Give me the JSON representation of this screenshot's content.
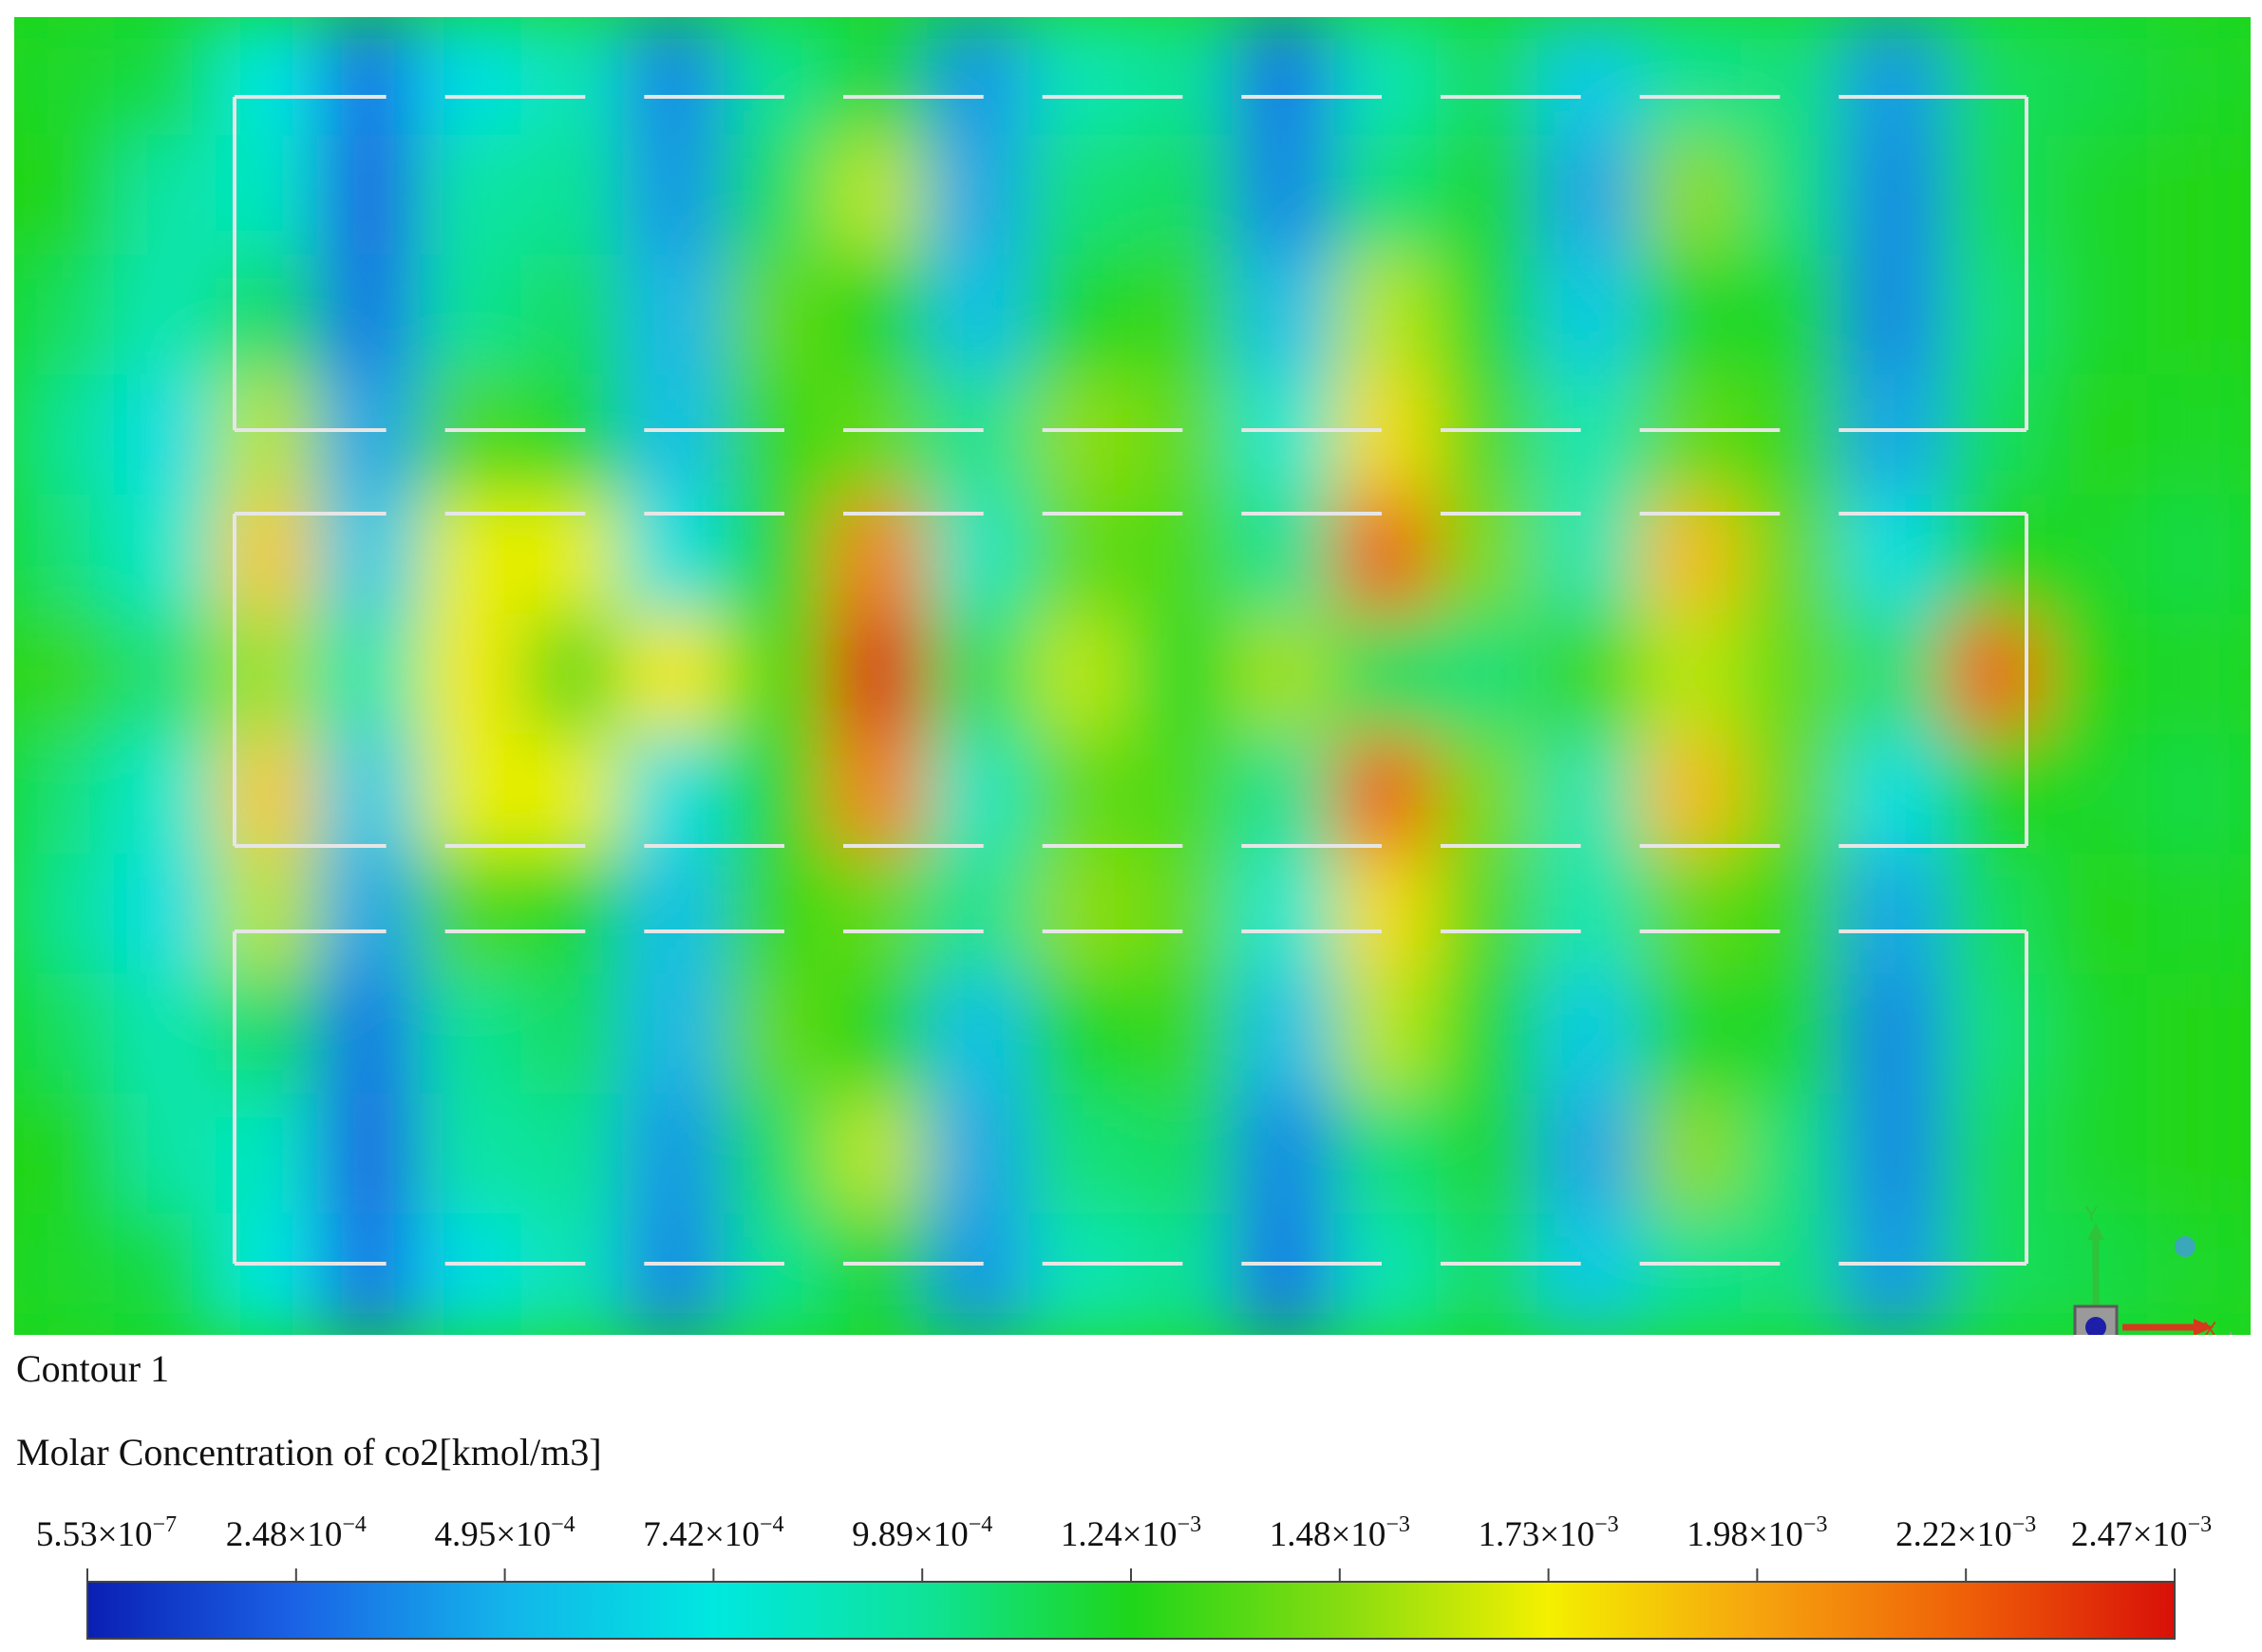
{
  "caption": {
    "contour_title": "Contour 1",
    "variable_label": "Molar Concentration of co2[kmol/m3]"
  },
  "axis_triad": {
    "y_label": "Y",
    "x_label": "X"
  },
  "colors": {
    "colormap": [
      "#0a1fb4",
      "#1a63e6",
      "#13b4ea",
      "#00e8e0",
      "#0ee39a",
      "#1ed61a",
      "#86dc10",
      "#f4f000",
      "#f6a40e",
      "#ef5f08",
      "#d81008"
    ],
    "frame_line": "#e6e6e6"
  },
  "chart_data": {
    "type": "heatmap",
    "title": "Contour 1",
    "variable": "Molar Concentration of co2[kmol/m3]",
    "colorbar": {
      "min": 5.53e-07,
      "max": 0.00247,
      "ticks": [
        5.53e-07,
        0.000248,
        0.000495,
        0.000742,
        0.000989,
        0.00124,
        0.00148,
        0.00173,
        0.00198,
        0.00222,
        0.00247
      ],
      "tick_labels": [
        {
          "mantissa": "5.53",
          "exponent": "−7"
        },
        {
          "mantissa": "2.48",
          "exponent": "−4"
        },
        {
          "mantissa": "4.95",
          "exponent": "−4"
        },
        {
          "mantissa": "7.42",
          "exponent": "−4"
        },
        {
          "mantissa": "9.89",
          "exponent": "−4"
        },
        {
          "mantissa": "1.24",
          "exponent": "−3"
        },
        {
          "mantissa": "1.48",
          "exponent": "−3"
        },
        {
          "mantissa": "1.73",
          "exponent": "−3"
        },
        {
          "mantissa": "1.98",
          "exponent": "−3"
        },
        {
          "mantissa": "2.22",
          "exponent": "−3"
        },
        {
          "mantissa": "2.47",
          "exponent": "−3"
        }
      ]
    },
    "field_grid": {
      "note_rows": "rows top to bottom, columns left to right, values in kmol/m3 x 1e-3",
      "rows": [
        [
          1.2,
          1.15,
          0.75,
          0.3,
          0.7,
          0.9,
          0.35,
          1.0,
          1.2,
          0.4,
          0.9,
          1.0,
          0.3,
          0.9,
          1.1,
          0.6,
          1.0,
          1.05,
          0.4,
          1.1,
          1.15,
          1.2
        ],
        [
          1.25,
          0.95,
          0.85,
          0.25,
          0.95,
          1.0,
          0.4,
          1.1,
          1.6,
          0.45,
          1.05,
          1.1,
          0.35,
          1.05,
          1.2,
          0.45,
          1.5,
          1.05,
          0.35,
          1.1,
          1.2,
          1.25
        ],
        [
          1.1,
          0.9,
          1.1,
          0.3,
          1.0,
          1.1,
          0.5,
          1.4,
          1.25,
          0.55,
          1.2,
          1.3,
          0.55,
          1.6,
          1.2,
          0.6,
          1.2,
          1.2,
          0.35,
          1.05,
          1.2,
          1.25
        ],
        [
          1.0,
          0.7,
          1.6,
          0.45,
          1.35,
          1.2,
          0.55,
          1.3,
          1.4,
          1.0,
          1.5,
          1.4,
          0.8,
          1.8,
          1.35,
          0.9,
          1.4,
          1.3,
          0.45,
          1.1,
          1.25,
          1.2
        ],
        [
          1.05,
          0.8,
          1.85,
          0.6,
          1.7,
          1.7,
          0.7,
          1.2,
          2.1,
          0.85,
          1.4,
          1.35,
          1.0,
          2.2,
          1.45,
          0.9,
          1.9,
          1.4,
          0.7,
          1.25,
          1.2,
          1.15
        ],
        [
          1.3,
          1.05,
          1.55,
          0.9,
          1.75,
          1.4,
          1.75,
          1.35,
          2.4,
          1.1,
          1.6,
          1.2,
          1.55,
          1.1,
          1.05,
          1.3,
          1.6,
          1.4,
          1.05,
          2.2,
          1.25,
          1.2
        ],
        [
          1.05,
          0.8,
          1.85,
          0.6,
          1.7,
          1.7,
          0.7,
          1.2,
          2.1,
          0.85,
          1.4,
          1.35,
          1.0,
          2.2,
          1.45,
          0.9,
          1.9,
          1.4,
          0.7,
          1.25,
          1.2,
          1.15
        ],
        [
          1.0,
          0.7,
          1.6,
          0.45,
          1.35,
          1.2,
          0.55,
          1.3,
          1.4,
          1.0,
          1.5,
          1.4,
          0.8,
          1.8,
          1.35,
          0.9,
          1.4,
          1.3,
          0.45,
          1.1,
          1.25,
          1.2
        ],
        [
          1.1,
          0.9,
          1.1,
          0.3,
          1.0,
          1.1,
          0.5,
          1.4,
          1.25,
          0.55,
          1.2,
          1.3,
          0.55,
          1.6,
          1.2,
          0.6,
          1.2,
          1.2,
          0.35,
          1.05,
          1.2,
          1.25
        ],
        [
          1.25,
          0.95,
          0.85,
          0.25,
          0.95,
          1.0,
          0.4,
          1.1,
          1.6,
          0.45,
          1.05,
          1.1,
          0.35,
          1.05,
          1.2,
          0.45,
          1.5,
          1.05,
          0.35,
          1.1,
          1.2,
          1.25
        ],
        [
          1.2,
          1.15,
          0.75,
          0.3,
          0.7,
          0.9,
          0.35,
          1.0,
          1.2,
          0.4,
          0.9,
          1.0,
          0.3,
          0.9,
          1.1,
          0.6,
          1.0,
          1.05,
          0.4,
          1.1,
          1.15,
          1.2
        ]
      ]
    }
  }
}
